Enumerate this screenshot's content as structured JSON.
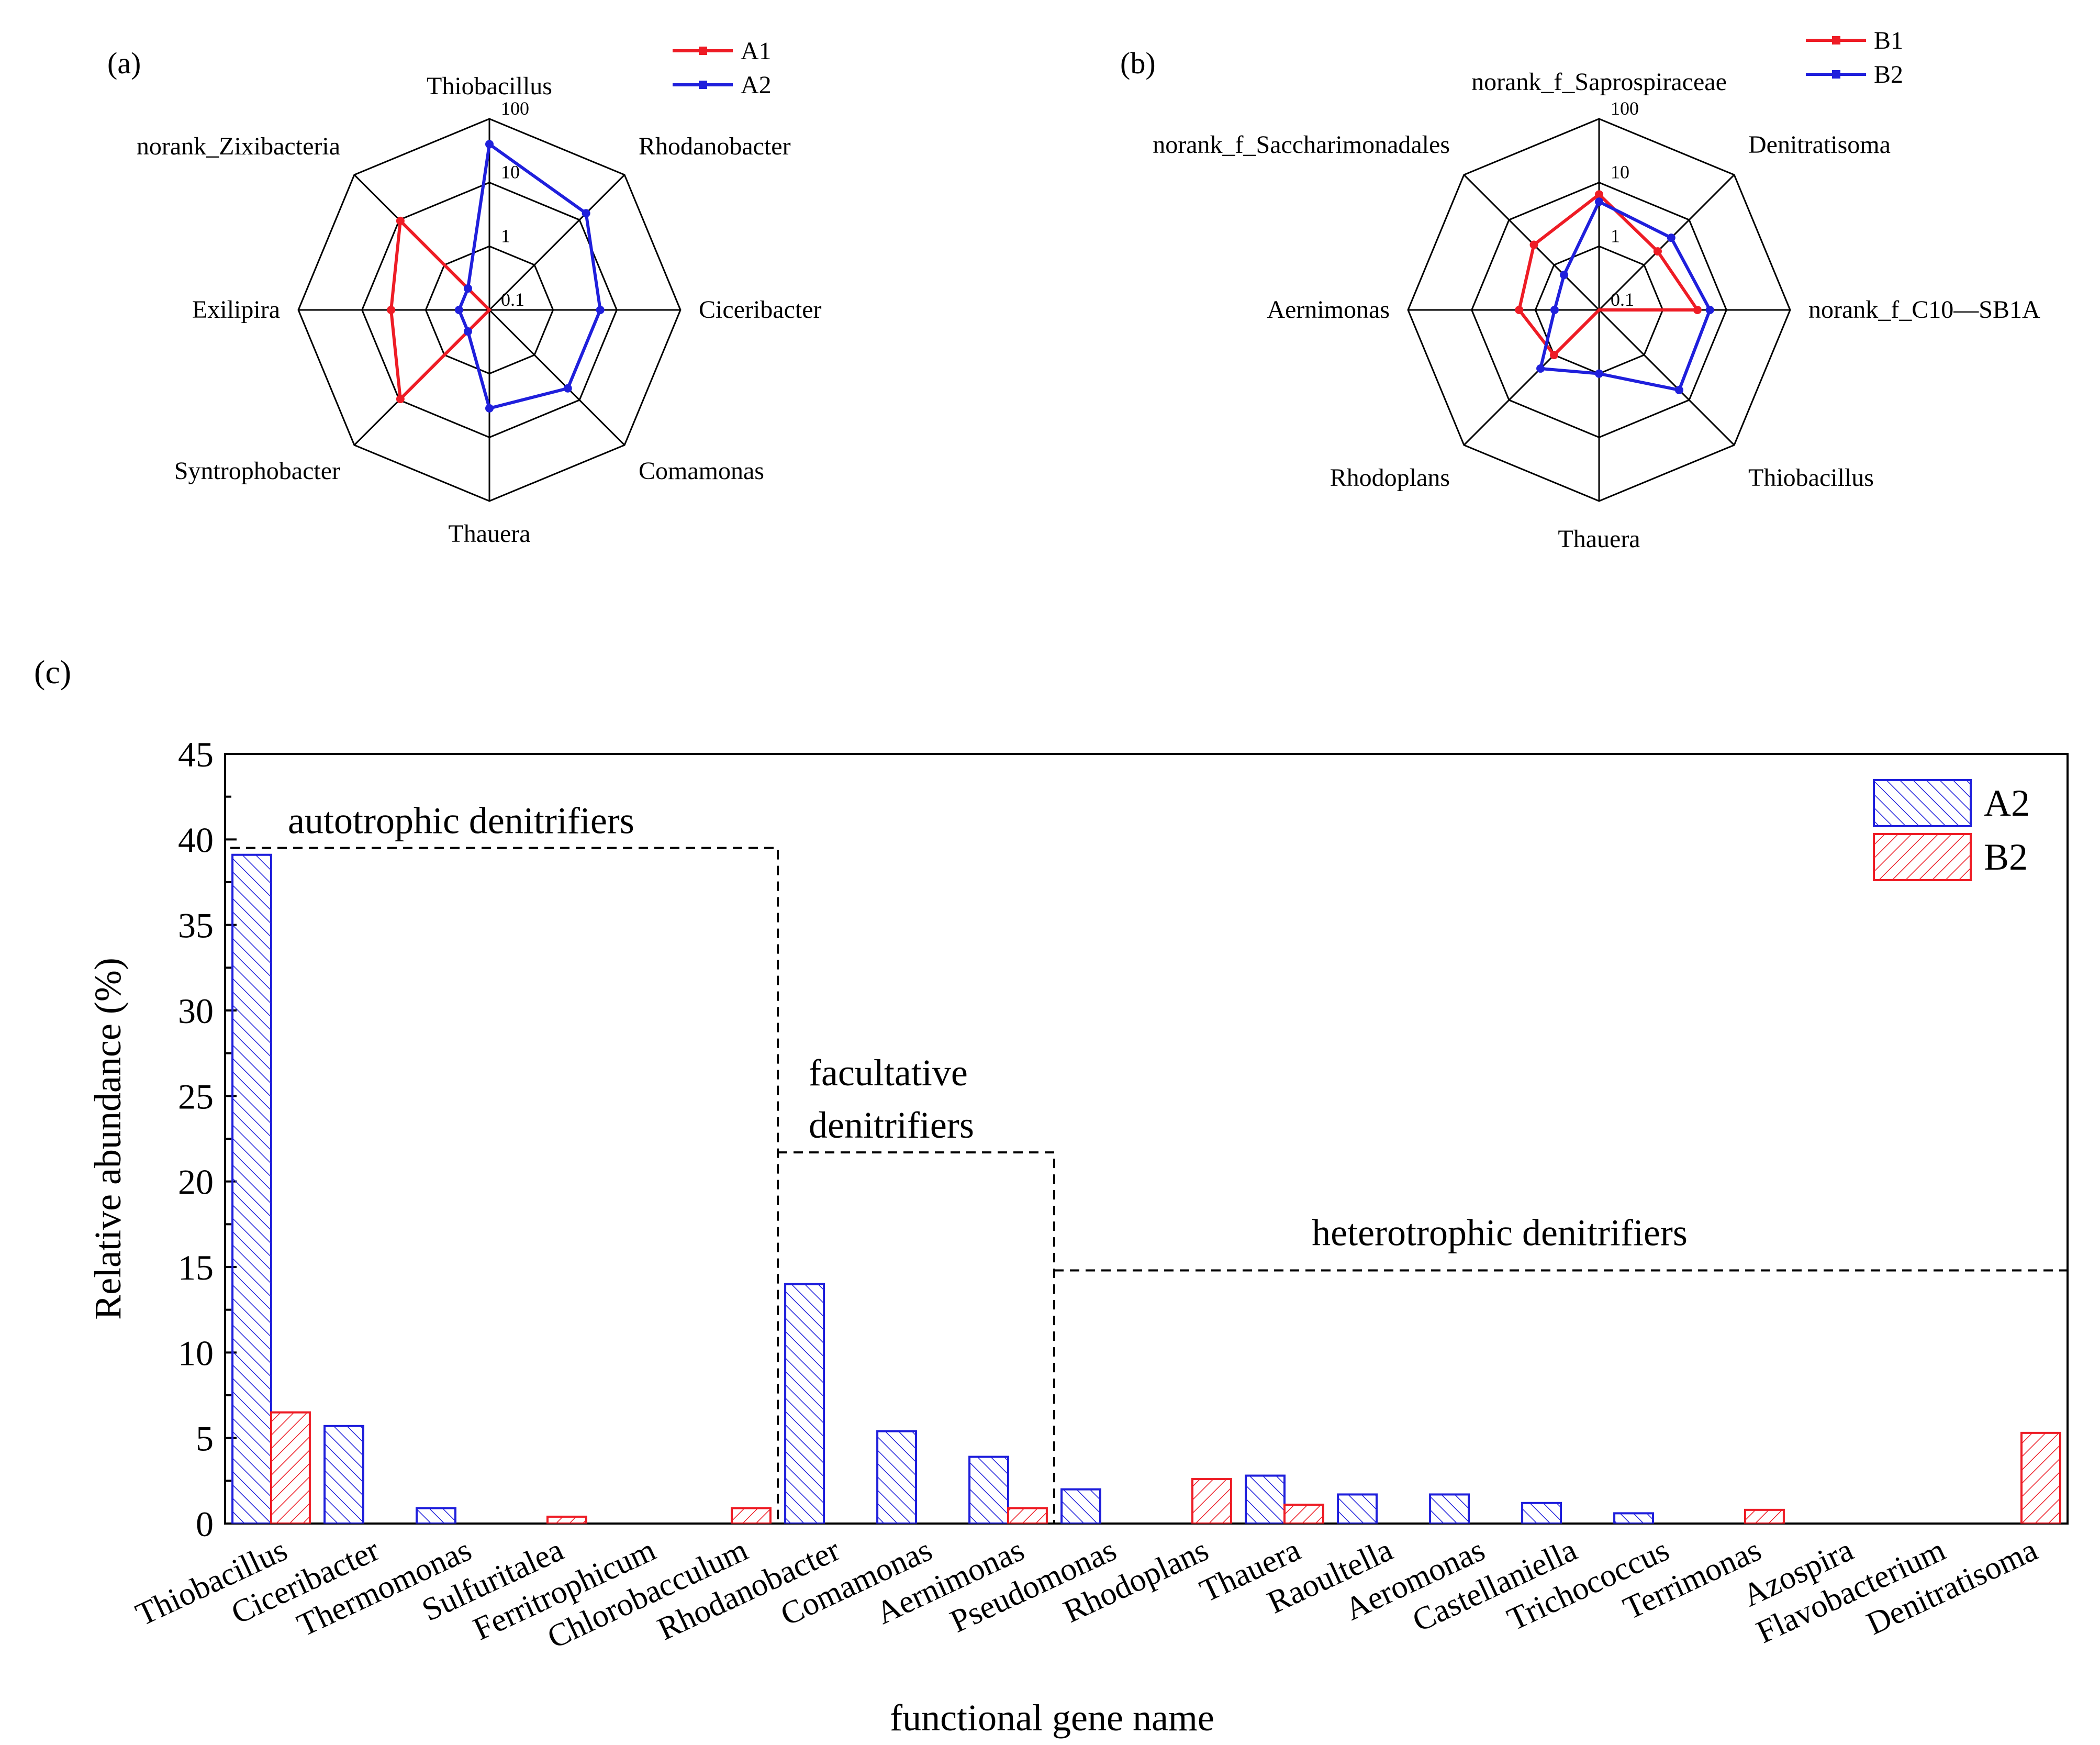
{
  "colors": {
    "red": "#ee1c25",
    "blue": "#1f1fdc",
    "axis": "#000000"
  },
  "chart_data": [
    {
      "panel": "(a)",
      "type": "radar",
      "scale": "log",
      "ring_labels": [
        "0.1",
        "1",
        "10",
        "100"
      ],
      "ring_values": [
        0.1,
        1,
        10,
        100
      ],
      "axes": [
        "Thiobacillus",
        "Rhodanobacter",
        "Ciceribacter",
        "Comamonas",
        "Thauera",
        "Syntrophobacter",
        "Exilipira",
        "norank_Zixibacteria"
      ],
      "legend": {
        "position": "top-right"
      },
      "series": [
        {
          "name": "A1",
          "color": "red",
          "values": [
            0.1,
            0.1,
            0.1,
            0.1,
            0.1,
            9.5,
            3.5,
            9.5
          ]
        },
        {
          "name": "A2",
          "color": "blue",
          "values": [
            40.0,
            14.0,
            5.5,
            5.5,
            3.5,
            0.3,
            0.3,
            0.3
          ]
        }
      ]
    },
    {
      "panel": "(b)",
      "type": "radar",
      "scale": "log",
      "ring_labels": [
        "0.1",
        "1",
        "10",
        "100"
      ],
      "ring_values": [
        0.1,
        1,
        10,
        100
      ],
      "axes": [
        "norank_f_Saprospiraceae",
        "Denitratisoma",
        "norank_f_C10—SB1A",
        "Thiobacillus",
        "Thauera",
        "Rhodoplans",
        "Aernimonas",
        "norank_f_Saccharimonadales"
      ],
      "legend": {
        "position": "top-right"
      },
      "series": [
        {
          "name": "B1",
          "color": "red",
          "values": [
            6.5,
            2.0,
            3.5,
            0.1,
            0.1,
            1.0,
            1.8,
            2.8
          ]
        },
        {
          "name": "B2",
          "color": "blue",
          "values": [
            5.0,
            4.0,
            5.5,
            6.0,
            1.0,
            2.0,
            0.5,
            0.6
          ]
        }
      ]
    },
    {
      "panel": "(c)",
      "type": "bar",
      "xlabel": "functional gene name",
      "ylabel": "Relative abundance (%)",
      "ylim": [
        0,
        45
      ],
      "yticks": [
        0,
        5,
        10,
        15,
        20,
        25,
        30,
        35,
        40,
        45
      ],
      "categories": [
        "Thiobacillus",
        "Ciceribacter",
        "Thermomonas",
        "Sulfuritalea",
        "Ferritrophicum",
        "Chlorobacculum",
        "Rhodanobacter",
        "Comamonas",
        "Aernimonas",
        "Pseudomonas",
        "Rhodoplans",
        "Thauera",
        "Raoultella",
        "Aeromonas",
        "Castellaniella",
        "Trichococcus",
        "Terrimonas",
        "Azospira",
        "Flavobacterium",
        "Denitratisoma"
      ],
      "series": [
        {
          "name": "A2",
          "color": "blue",
          "hatch": "forward",
          "values": [
            39.1,
            5.7,
            0.9,
            0,
            0,
            0,
            14.0,
            5.4,
            3.9,
            2.0,
            0,
            2.8,
            1.7,
            1.7,
            1.2,
            0.6,
            0,
            0,
            0,
            0
          ]
        },
        {
          "name": "B2",
          "color": "red",
          "hatch": "back",
          "values": [
            6.5,
            0,
            0,
            0.4,
            0,
            0.9,
            0,
            0,
            0.9,
            0,
            2.6,
            1.1,
            0,
            0,
            0,
            0,
            0.8,
            0,
            0,
            5.3
          ]
        }
      ],
      "groups": [
        {
          "label": "autotrophic  denitrifiers",
          "from": "Thiobacillus",
          "to": "Chlorobacculum",
          "level": 39.5
        },
        {
          "label_lines": [
            "facultative",
            "denitrifiers"
          ],
          "from": "Rhodanobacter",
          "to": "Aernimonas",
          "level": 21.7
        },
        {
          "label": "heterotrophic  denitrifiers",
          "from": "Pseudomonas",
          "to": "Denitratisoma",
          "level": 14.8
        }
      ],
      "legend": {
        "position": "top-right"
      }
    }
  ]
}
